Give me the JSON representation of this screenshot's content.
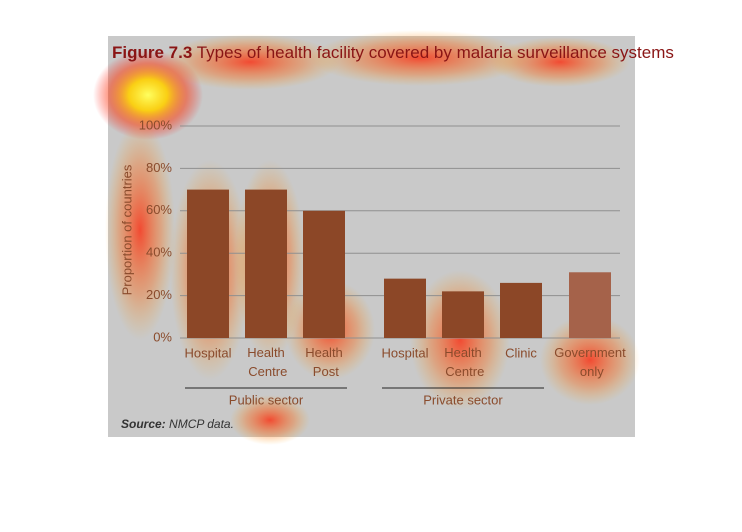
{
  "chart_data": {
    "type": "bar",
    "title_prefix": "Figure 7.3",
    "title": "Types of health facility covered by malaria surveillance systems",
    "y_label": "Proportion of countries",
    "groups": [
      {
        "name": "Public sector",
        "categories": [
          "Hospital",
          "Health Centre",
          "Health Post"
        ],
        "values": [
          70,
          70,
          60
        ],
        "color": "#8c4727"
      },
      {
        "name": "Private sector",
        "categories": [
          "Hospital",
          "Health Centre",
          "Clinic"
        ],
        "values": [
          28,
          22,
          26
        ],
        "color": "#8c4727"
      },
      {
        "categories": [
          "Government only"
        ],
        "values": [
          31
        ],
        "color": "#a5624a"
      }
    ],
    "ylim": [
      0,
      100
    ],
    "yticks": [
      {
        "value": 0,
        "label": "0%"
      },
      {
        "value": 20,
        "label": "20%"
      },
      {
        "value": 40,
        "label": "40%"
      },
      {
        "value": 60,
        "label": "60%"
      },
      {
        "value": 80,
        "label": "80%"
      },
      {
        "value": 100,
        "label": "100%"
      }
    ],
    "grid": true,
    "source_label": "Source:",
    "source_text": "NMCP data."
  }
}
